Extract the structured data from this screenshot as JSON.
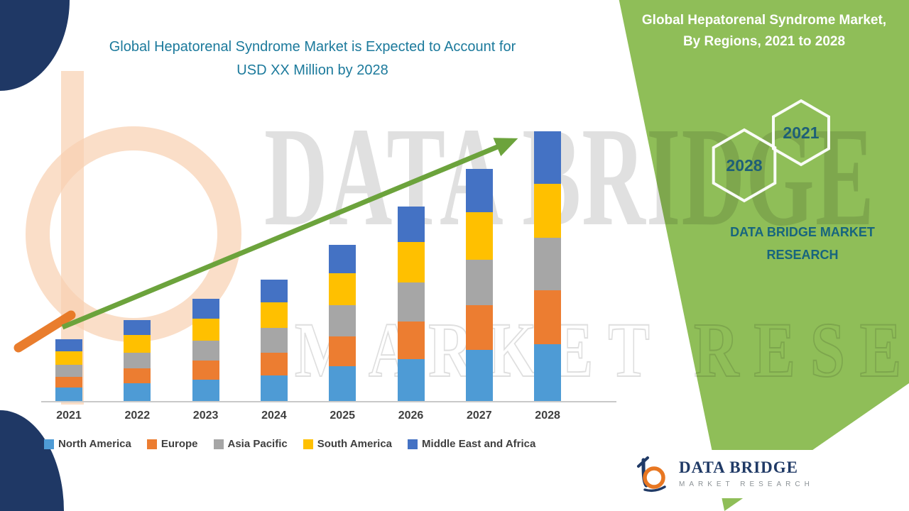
{
  "title": {
    "line1": "Global Hepatorenal Syndrome Market is Expected to Account for",
    "line2": "USD XX Million by 2028"
  },
  "side_panel": {
    "heading_line1": "Global Hepatorenal Syndrome Market,",
    "heading_line2": "By Regions, 2021 to 2028",
    "hex_badges": [
      {
        "label": "2028"
      },
      {
        "label": "2021"
      }
    ],
    "brand_line1": "DATA BRIDGE MARKET",
    "brand_line2": "RESEARCH"
  },
  "watermark": {
    "line1": "DATA BRIDGE",
    "line2": "MARKET RESEARCH"
  },
  "footer_logo": {
    "name": "DATA BRIDGE",
    "sub": "MARKET RESEARCH"
  },
  "colors": {
    "accent_teal": "#1C7A9C",
    "panel_green": "#8FBE58",
    "navy": "#1F3865",
    "orange": "#E87722",
    "arrow_green": "#6CA33C"
  },
  "chart_data": {
    "type": "bar",
    "stacked": true,
    "title": "Global Hepatorenal Syndrome Market is Expected to Account for USD XX Million by 2028",
    "categories": [
      "2021",
      "2022",
      "2023",
      "2024",
      "2025",
      "2026",
      "2027",
      "2028"
    ],
    "series": [
      {
        "name": "North America",
        "color": "#4E9BD5",
        "values": [
          5,
          6.5,
          8,
          9.5,
          13,
          15.5,
          19,
          21
        ]
      },
      {
        "name": "Europe",
        "color": "#EC7D31",
        "values": [
          4,
          5.5,
          7,
          8.5,
          11,
          14,
          16.5,
          20
        ]
      },
      {
        "name": "Asia Pacific",
        "color": "#A6A6A6",
        "values": [
          4.5,
          6,
          7.5,
          9,
          11.5,
          14.5,
          17,
          19.5
        ]
      },
      {
        "name": "South America",
        "color": "#FFC000",
        "values": [
          5,
          6.5,
          8,
          9.5,
          12,
          15,
          17.5,
          20
        ]
      },
      {
        "name": "Middle East and Africa",
        "color": "#4472C4",
        "values": [
          4.5,
          5.5,
          7.5,
          8.5,
          10.5,
          13,
          16,
          19.5
        ]
      }
    ],
    "xlabel": "",
    "ylabel": "",
    "ylim": [
      0,
      105
    ],
    "y_axis_visible": false,
    "x_axis_visible": true,
    "grid": false,
    "legend_position": "bottom",
    "trend_arrow": true,
    "values_note": "relative units estimated from bar heights; axis values not shown (XX)"
  }
}
